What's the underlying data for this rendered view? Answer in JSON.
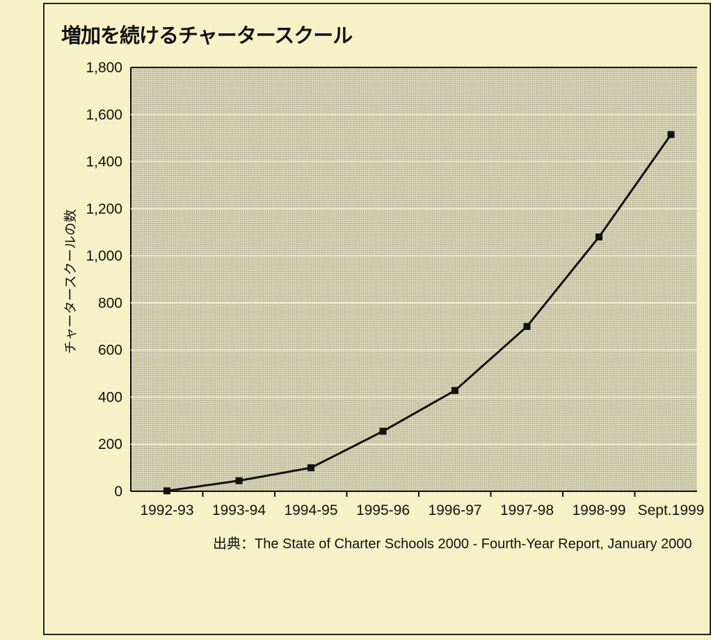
{
  "chart_data": {
    "type": "line",
    "title": "増加を続けるチャータースクール",
    "ylabel": "チャータースクールの数",
    "xlabel": "",
    "categories": [
      "1992-93",
      "1993-94",
      "1994-95",
      "1995-96",
      "1996-97",
      "1997-98",
      "1998-99",
      "Sept.1999"
    ],
    "series": [
      {
        "values": [
          2,
          45,
          100,
          255,
          428,
          700,
          1080,
          1515
        ]
      }
    ],
    "ylim": [
      0,
      1800
    ],
    "yticks": [
      "0",
      "200",
      "400",
      "600",
      "800",
      "1,000",
      "1,200",
      "1,400",
      "1,600",
      "1,800"
    ],
    "grid": true,
    "source": "出典：The State of Charter Schools 2000 - Fourth-Year Report, January 2000",
    "colors": {
      "background": "#f7f1c8",
      "plot_fill": "#c4c0a4",
      "grid": "#eeeacb",
      "line": "#111111"
    }
  }
}
